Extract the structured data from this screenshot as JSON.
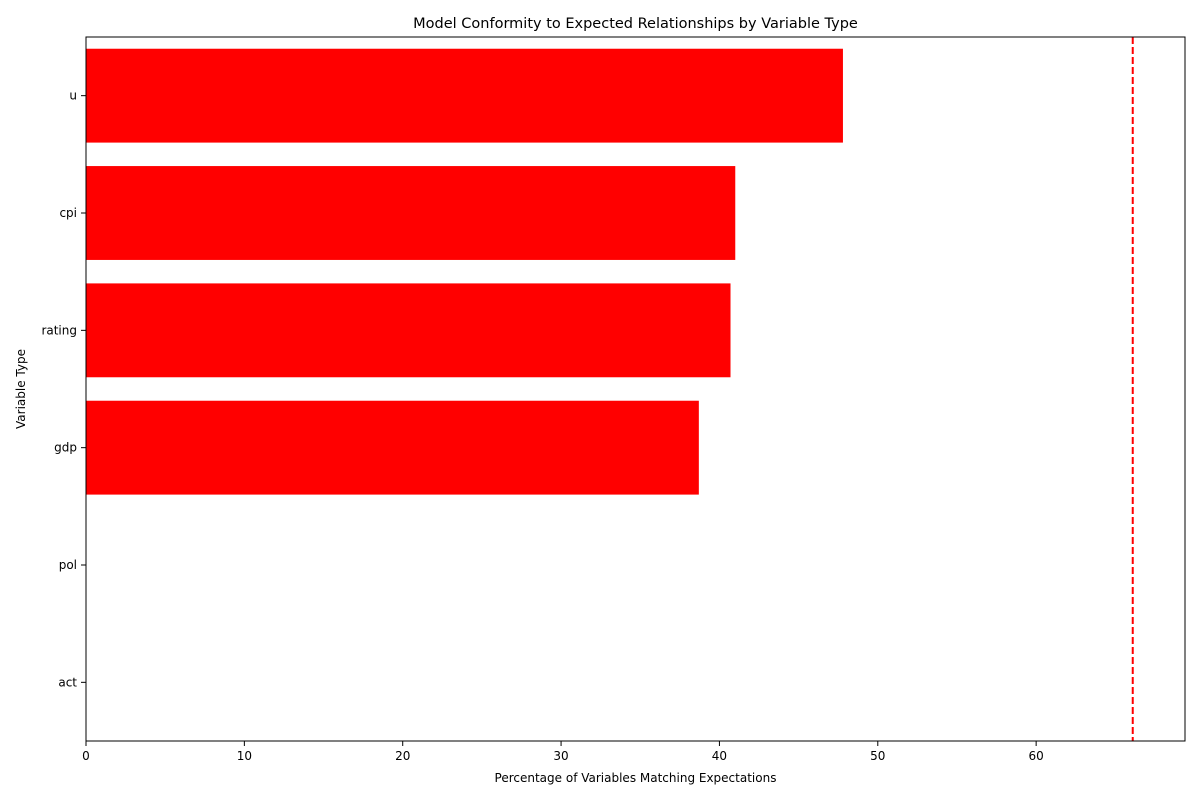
{
  "chart_data": {
    "type": "bar",
    "orientation": "horizontal",
    "title": "Model Conformity to Expected Relationships by Variable Type",
    "xlabel": "Percentage of Variables Matching Expectations",
    "ylabel": "Variable Type",
    "categories": [
      "u",
      "cpi",
      "rating",
      "gdp",
      "pol",
      "act"
    ],
    "values": [
      47.8,
      41.0,
      40.7,
      38.7,
      0,
      0
    ],
    "xlim": [
      0,
      69.4
    ],
    "xticks": [
      0,
      10,
      20,
      30,
      40,
      50,
      60
    ],
    "reference_line": {
      "x": 66.1,
      "style": "dashed",
      "color": "#ff0000"
    },
    "bar_color": "#ff0000",
    "grid": false,
    "legend": "none"
  }
}
